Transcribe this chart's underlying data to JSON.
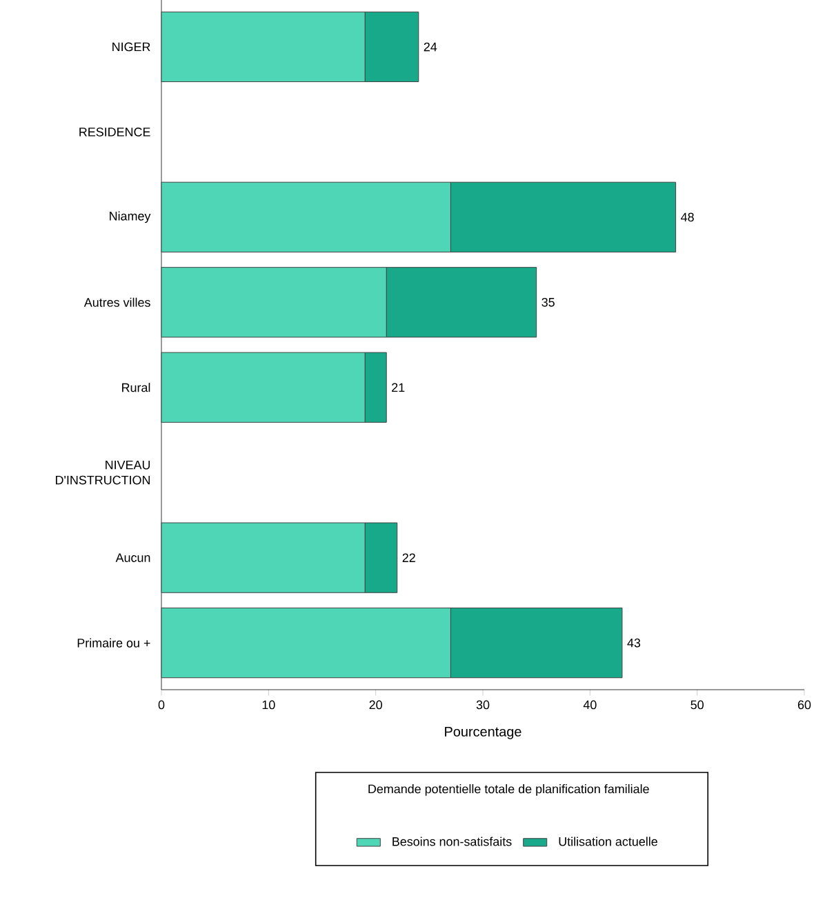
{
  "chart_data": {
    "type": "bar",
    "orientation": "horizontal",
    "stacked": true,
    "categories": [
      "NIGER",
      "RESIDENCE",
      "Niamey",
      "Autres villes",
      "Rural",
      "NIVEAU D'INSTRUCTION",
      "Aucun",
      "Primaire ou +"
    ],
    "series": [
      {
        "name": "Besoins non-satisfaits",
        "color": "#4fd6b6",
        "values": [
          19,
          null,
          27,
          21,
          19,
          null,
          19,
          27
        ]
      },
      {
        "name": "Utilisation actuelle",
        "color": "#17a98a",
        "values": [
          5,
          null,
          21,
          14,
          2,
          null,
          3,
          16
        ]
      }
    ],
    "totals": [
      "24",
      null,
      "48",
      "35",
      "21",
      null,
      "22",
      "43"
    ],
    "xlabel": "Pourcentage",
    "legend_title": "Demande potentielle totale de planification familiale",
    "legend": "bottom",
    "xlim": [
      0,
      60
    ],
    "xticks": [
      0,
      10,
      20,
      30,
      40,
      50,
      60
    ]
  }
}
